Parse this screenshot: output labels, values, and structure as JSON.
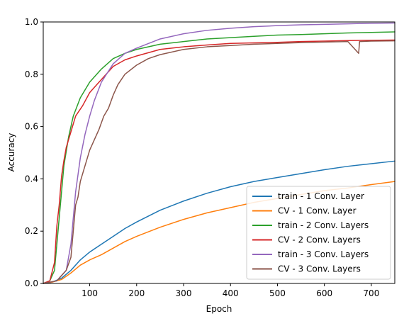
{
  "chart_data": {
    "type": "line",
    "title": "",
    "xlabel": "Epoch",
    "ylabel": "Accuracy",
    "xlim": [
      1,
      750
    ],
    "ylim": [
      0.0,
      1.0
    ],
    "xticks": [
      100,
      200,
      300,
      400,
      500,
      600,
      700
    ],
    "yticks": [
      0.0,
      0.2,
      0.4,
      0.6,
      0.8,
      1.0
    ],
    "xtick_labels": [
      "100",
      "200",
      "300",
      "400",
      "500",
      "600",
      "700"
    ],
    "ytick_labels": [
      "0.0",
      "0.2",
      "0.4",
      "0.6",
      "0.8",
      "1.0"
    ],
    "grid": false,
    "legend_position": "lower-right",
    "series": [
      {
        "name": "train - 1 Conv. Layer",
        "color": "#1f77b4",
        "points": [
          [
            1,
            0.0
          ],
          [
            20,
            0.005
          ],
          [
            40,
            0.02
          ],
          [
            60,
            0.05
          ],
          [
            80,
            0.09
          ],
          [
            100,
            0.12
          ],
          [
            125,
            0.15
          ],
          [
            150,
            0.18
          ],
          [
            175,
            0.21
          ],
          [
            200,
            0.235
          ],
          [
            250,
            0.28
          ],
          [
            300,
            0.315
          ],
          [
            350,
            0.345
          ],
          [
            400,
            0.37
          ],
          [
            450,
            0.39
          ],
          [
            500,
            0.405
          ],
          [
            550,
            0.42
          ],
          [
            600,
            0.435
          ],
          [
            650,
            0.448
          ],
          [
            700,
            0.458
          ],
          [
            750,
            0.468
          ]
        ]
      },
      {
        "name": "CV - 1 Conv. Layer",
        "color": "#ff7f0e",
        "points": [
          [
            1,
            0.0
          ],
          [
            20,
            0.005
          ],
          [
            40,
            0.015
          ],
          [
            60,
            0.04
          ],
          [
            80,
            0.07
          ],
          [
            100,
            0.09
          ],
          [
            125,
            0.11
          ],
          [
            150,
            0.135
          ],
          [
            175,
            0.16
          ],
          [
            200,
            0.18
          ],
          [
            250,
            0.215
          ],
          [
            300,
            0.245
          ],
          [
            350,
            0.27
          ],
          [
            400,
            0.29
          ],
          [
            450,
            0.31
          ],
          [
            500,
            0.325
          ],
          [
            550,
            0.34
          ],
          [
            600,
            0.355
          ],
          [
            650,
            0.365
          ],
          [
            700,
            0.378
          ],
          [
            750,
            0.39
          ]
        ]
      },
      {
        "name": "train - 2 Conv. Layers",
        "color": "#2ca02c",
        "points": [
          [
            1,
            0.0
          ],
          [
            15,
            0.01
          ],
          [
            25,
            0.05
          ],
          [
            35,
            0.25
          ],
          [
            45,
            0.45
          ],
          [
            55,
            0.56
          ],
          [
            65,
            0.64
          ],
          [
            80,
            0.71
          ],
          [
            100,
            0.77
          ],
          [
            125,
            0.82
          ],
          [
            150,
            0.86
          ],
          [
            175,
            0.88
          ],
          [
            200,
            0.895
          ],
          [
            250,
            0.915
          ],
          [
            300,
            0.925
          ],
          [
            350,
            0.935
          ],
          [
            400,
            0.94
          ],
          [
            450,
            0.945
          ],
          [
            500,
            0.95
          ],
          [
            550,
            0.952
          ],
          [
            600,
            0.955
          ],
          [
            650,
            0.958
          ],
          [
            700,
            0.96
          ],
          [
            750,
            0.962
          ]
        ]
      },
      {
        "name": "CV - 2 Conv. Layers",
        "color": "#d62728",
        "points": [
          [
            1,
            0.0
          ],
          [
            15,
            0.01
          ],
          [
            25,
            0.08
          ],
          [
            30,
            0.22
          ],
          [
            35,
            0.3
          ],
          [
            40,
            0.41
          ],
          [
            45,
            0.47
          ],
          [
            50,
            0.52
          ],
          [
            60,
            0.58
          ],
          [
            70,
            0.64
          ],
          [
            85,
            0.68
          ],
          [
            100,
            0.73
          ],
          [
            115,
            0.76
          ],
          [
            130,
            0.79
          ],
          [
            150,
            0.83
          ],
          [
            175,
            0.855
          ],
          [
            200,
            0.87
          ],
          [
            250,
            0.895
          ],
          [
            300,
            0.905
          ],
          [
            350,
            0.912
          ],
          [
            400,
            0.918
          ],
          [
            450,
            0.92
          ],
          [
            500,
            0.922
          ],
          [
            550,
            0.925
          ],
          [
            600,
            0.927
          ],
          [
            650,
            0.929
          ],
          [
            700,
            0.93
          ],
          [
            750,
            0.931
          ]
        ]
      },
      {
        "name": "train - 3 Conv. Layers",
        "color": "#9467bd",
        "points": [
          [
            1,
            0.0
          ],
          [
            30,
            0.01
          ],
          [
            50,
            0.05
          ],
          [
            60,
            0.15
          ],
          [
            70,
            0.35
          ],
          [
            80,
            0.48
          ],
          [
            90,
            0.57
          ],
          [
            100,
            0.64
          ],
          [
            110,
            0.7
          ],
          [
            125,
            0.77
          ],
          [
            150,
            0.84
          ],
          [
            175,
            0.88
          ],
          [
            200,
            0.9
          ],
          [
            250,
            0.935
          ],
          [
            300,
            0.955
          ],
          [
            350,
            0.968
          ],
          [
            400,
            0.976
          ],
          [
            450,
            0.982
          ],
          [
            500,
            0.986
          ],
          [
            550,
            0.989
          ],
          [
            600,
            0.991
          ],
          [
            650,
            0.993
          ],
          [
            700,
            0.995
          ],
          [
            750,
            0.996
          ]
        ]
      },
      {
        "name": "CV - 3 Conv. Layers",
        "color": "#8c564b",
        "points": [
          [
            1,
            0.0
          ],
          [
            30,
            0.01
          ],
          [
            50,
            0.05
          ],
          [
            60,
            0.1
          ],
          [
            65,
            0.2
          ],
          [
            70,
            0.3
          ],
          [
            75,
            0.33
          ],
          [
            80,
            0.39
          ],
          [
            90,
            0.45
          ],
          [
            100,
            0.51
          ],
          [
            110,
            0.55
          ],
          [
            120,
            0.59
          ],
          [
            130,
            0.64
          ],
          [
            140,
            0.67
          ],
          [
            150,
            0.72
          ],
          [
            160,
            0.76
          ],
          [
            175,
            0.8
          ],
          [
            200,
            0.835
          ],
          [
            225,
            0.86
          ],
          [
            250,
            0.875
          ],
          [
            300,
            0.895
          ],
          [
            350,
            0.905
          ],
          [
            400,
            0.91
          ],
          [
            450,
            0.915
          ],
          [
            500,
            0.918
          ],
          [
            550,
            0.921
          ],
          [
            600,
            0.923
          ],
          [
            650,
            0.925
          ],
          [
            673,
            0.88
          ],
          [
            675,
            0.925
          ],
          [
            700,
            0.927
          ],
          [
            750,
            0.928
          ]
        ]
      }
    ]
  }
}
